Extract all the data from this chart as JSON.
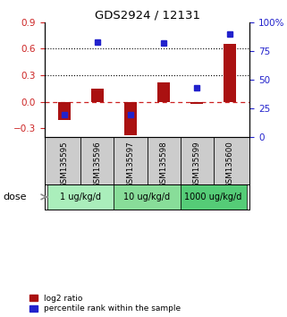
{
  "title": "GDS2924 / 12131",
  "samples": [
    "GSM135595",
    "GSM135596",
    "GSM135597",
    "GSM135598",
    "GSM135599",
    "GSM135600"
  ],
  "log2_ratio": [
    -0.2,
    0.15,
    -0.38,
    0.22,
    -0.02,
    0.65
  ],
  "percentile_rank": [
    20,
    83,
    20,
    82,
    43,
    90
  ],
  "bar_color": "#aa1111",
  "dot_color": "#2222cc",
  "ylim_left": [
    -0.4,
    0.9
  ],
  "ylim_right": [
    0,
    100
  ],
  "yticks_left": [
    -0.3,
    0.0,
    0.3,
    0.6,
    0.9
  ],
  "yticks_right": [
    0,
    25,
    50,
    75,
    100
  ],
  "ytick_labels_right": [
    "0",
    "25",
    "50",
    "75",
    "100%"
  ],
  "hlines_dotted": [
    0.3,
    0.6
  ],
  "hline_dashed": 0.0,
  "dose_groups": [
    {
      "label": "1 ug/kg/d",
      "indices": [
        0,
        1
      ],
      "color": "#aaeebb"
    },
    {
      "label": "10 ug/kg/d",
      "indices": [
        2,
        3
      ],
      "color": "#88dd99"
    },
    {
      "label": "1000 ug/kg/d",
      "indices": [
        4,
        5
      ],
      "color": "#55cc77"
    }
  ],
  "dose_label": "dose",
  "legend_red": "log2 ratio",
  "legend_blue": "percentile rank within the sample",
  "background_color": "#ffffff",
  "xlabels_bg": "#cccccc",
  "bar_width": 0.4
}
